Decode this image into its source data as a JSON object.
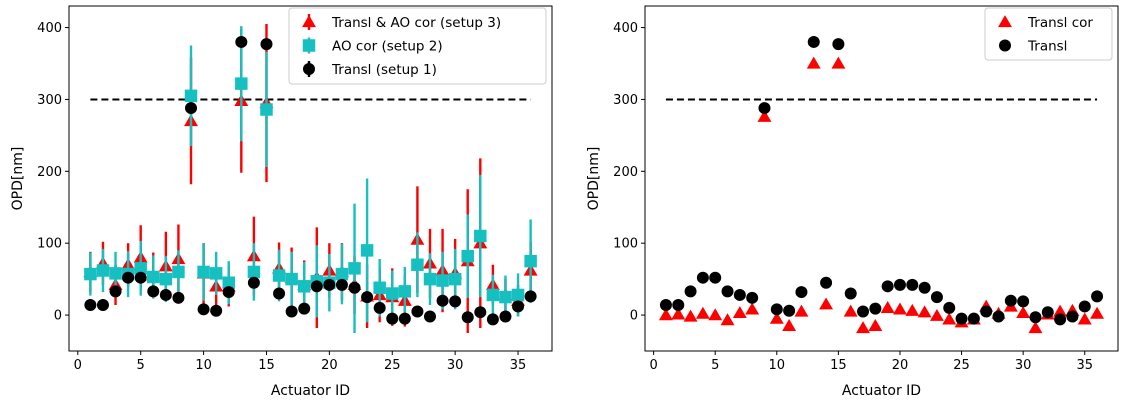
{
  "chart_data": [
    {
      "type": "scatter",
      "title": "",
      "xlabel": "Actuator ID",
      "ylabel": "OPD[nm]",
      "xlim": [
        -0.7,
        37.7
      ],
      "ylim": [
        -50,
        430
      ],
      "xticks": [
        0,
        5,
        10,
        15,
        20,
        25,
        30,
        35
      ],
      "yticks": [
        0,
        100,
        200,
        300,
        400
      ],
      "legend_position": "top-right",
      "reference_line": {
        "y": 300,
        "x": [
          1,
          36
        ],
        "style": "dashed"
      },
      "series": [
        {
          "name": "Transl & AO cor (setup 3)",
          "marker": "triangle",
          "color": "#ff0000",
          "x": [
            1,
            2,
            3,
            4,
            5,
            6,
            7,
            8,
            9,
            10,
            11,
            12,
            13,
            14,
            15,
            16,
            17,
            18,
            19,
            20,
            21,
            22,
            23,
            24,
            25,
            26,
            27,
            28,
            29,
            30,
            31,
            32,
            33,
            34,
            35,
            36
          ],
          "y": [
            60,
            72,
            42,
            70,
            80,
            55,
            68,
            78,
            270,
            58,
            40,
            40,
            298,
            82,
            295,
            65,
            52,
            42,
            52,
            62,
            60,
            42,
            26,
            28,
            25,
            20,
            105,
            72,
            62,
            58,
            75,
            100,
            42,
            28,
            20,
            62
          ],
          "err": [
            28,
            30,
            28,
            30,
            45,
            32,
            48,
            48,
            88,
            42,
            28,
            28,
            100,
            55,
            110,
            36,
            42,
            34,
            70,
            38,
            40,
            40,
            44,
            38,
            40,
            36,
            74,
            48,
            58,
            48,
            100,
            118,
            28,
            22,
            22,
            40
          ]
        },
        {
          "name": "AO cor (setup 2)",
          "marker": "square",
          "color": "#16bfc0",
          "x": [
            1,
            2,
            3,
            4,
            5,
            6,
            7,
            8,
            9,
            10,
            11,
            12,
            13,
            14,
            15,
            16,
            17,
            18,
            19,
            20,
            21,
            22,
            23,
            24,
            25,
            26,
            27,
            28,
            29,
            30,
            31,
            32,
            33,
            34,
            35,
            36
          ],
          "y": [
            57,
            62,
            58,
            57,
            65,
            53,
            50,
            60,
            305,
            60,
            58,
            45,
            322,
            60,
            286,
            55,
            50,
            40,
            47,
            45,
            57,
            65,
            90,
            38,
            30,
            33,
            70,
            50,
            48,
            50,
            82,
            110,
            28,
            25,
            28,
            75
          ],
          "err": [
            30,
            30,
            30,
            32,
            38,
            30,
            32,
            30,
            70,
            40,
            30,
            30,
            80,
            40,
            80,
            36,
            38,
            34,
            50,
            40,
            42,
            90,
            100,
            40,
            32,
            34,
            45,
            36,
            40,
            42,
            58,
            85,
            28,
            30,
            30,
            58
          ]
        },
        {
          "name": "Transl (setup 1)",
          "marker": "circle",
          "color": "#000000",
          "x": [
            1,
            2,
            3,
            4,
            5,
            6,
            7,
            8,
            9,
            10,
            11,
            12,
            13,
            14,
            15,
            16,
            17,
            18,
            19,
            20,
            21,
            22,
            23,
            24,
            25,
            26,
            27,
            28,
            29,
            30,
            31,
            32,
            33,
            34,
            35,
            36
          ],
          "y": [
            14,
            14,
            33,
            52,
            52,
            33,
            28,
            24,
            288,
            8,
            6,
            32,
            380,
            45,
            377,
            30,
            5,
            9,
            40,
            42,
            42,
            38,
            25,
            10,
            -5,
            -5,
            5,
            -2,
            20,
            19,
            -3,
            4,
            -6,
            -2,
            12,
            26
          ],
          "err": [
            3,
            3,
            3,
            3,
            3,
            3,
            3,
            3,
            3,
            3,
            3,
            3,
            3,
            3,
            3,
            3,
            3,
            3,
            3,
            3,
            3,
            3,
            3,
            3,
            3,
            3,
            3,
            3,
            3,
            3,
            3,
            3,
            3,
            3,
            3,
            3
          ]
        }
      ]
    },
    {
      "type": "scatter",
      "title": "",
      "xlabel": "Actuator ID",
      "ylabel": "OPD[nm]",
      "xlim": [
        -0.7,
        37.7
      ],
      "ylim": [
        -50,
        430
      ],
      "xticks": [
        0,
        5,
        10,
        15,
        20,
        25,
        30,
        35
      ],
      "yticks": [
        0,
        100,
        200,
        300,
        400
      ],
      "legend_position": "top-right",
      "reference_line": {
        "y": 300,
        "x": [
          1,
          36
        ],
        "style": "dashed"
      },
      "series": [
        {
          "name": "Transl cor",
          "marker": "triangle",
          "color": "#ff0000",
          "x": [
            1,
            2,
            3,
            4,
            5,
            6,
            7,
            8,
            9,
            10,
            11,
            12,
            13,
            14,
            15,
            16,
            17,
            18,
            19,
            20,
            21,
            22,
            23,
            24,
            25,
            26,
            27,
            28,
            29,
            30,
            31,
            32,
            33,
            34,
            35,
            36
          ],
          "y": [
            0,
            1,
            -2,
            2,
            0,
            -7,
            3,
            8,
            276,
            -5,
            -15,
            5,
            350,
            15,
            350,
            5,
            -18,
            -15,
            10,
            8,
            6,
            4,
            -1,
            -6,
            -10,
            -6,
            12,
            2,
            12,
            3,
            -18,
            1,
            5,
            6,
            -6,
            2
          ]
        },
        {
          "name": "Transl",
          "marker": "circle",
          "color": "#000000",
          "x": [
            1,
            2,
            3,
            4,
            5,
            6,
            7,
            8,
            9,
            10,
            11,
            12,
            13,
            14,
            15,
            16,
            17,
            18,
            19,
            20,
            21,
            22,
            23,
            24,
            25,
            26,
            27,
            28,
            29,
            30,
            31,
            32,
            33,
            34,
            35,
            36
          ],
          "y": [
            14,
            14,
            33,
            52,
            52,
            33,
            28,
            24,
            288,
            8,
            6,
            32,
            380,
            45,
            377,
            30,
            5,
            9,
            40,
            42,
            42,
            38,
            25,
            10,
            -5,
            -5,
            5,
            -2,
            20,
            19,
            -3,
            4,
            -6,
            -2,
            12,
            26
          ]
        }
      ]
    }
  ]
}
